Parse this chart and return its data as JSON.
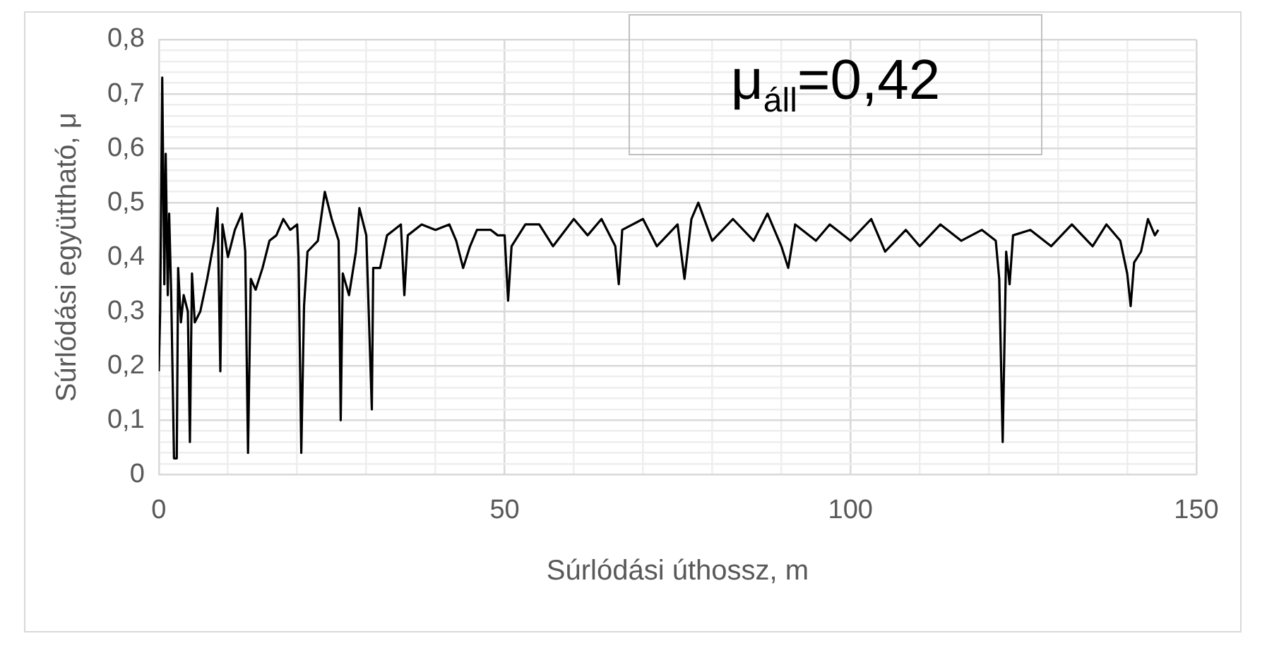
{
  "chart_data": {
    "type": "line",
    "xlabel": "Súrlódási úthossz, m",
    "ylabel": "Súrlódási együttható, μ",
    "annotations": [
      "μ$_{áll}$=0,42"
    ],
    "x": [
      0,
      0.2,
      0.5,
      0.8,
      1,
      1.3,
      1.5,
      1.8,
      2.2,
      2.6,
      2.8,
      3.2,
      3.6,
      4.2,
      4.5,
      4.8,
      5.2,
      6,
      7,
      8,
      8.5,
      8.9,
      9.2,
      10,
      11,
      12,
      12.5,
      12.9,
      13.3,
      14,
      15,
      16,
      17,
      18,
      19,
      20,
      20.2,
      20.6,
      21,
      21.5,
      23,
      24,
      25,
      26,
      26.3,
      26.6,
      27.5,
      28.5,
      29,
      30,
      30.8,
      31,
      32,
      33,
      34,
      35,
      35.5,
      36,
      38,
      40,
      42,
      43,
      44,
      45,
      46,
      48,
      49,
      50,
      50.5,
      51,
      53,
      55,
      57,
      60,
      62,
      64,
      66,
      66.5,
      67,
      70,
      72,
      75,
      76,
      77,
      78,
      80,
      83,
      86,
      88,
      90,
      91,
      92,
      95,
      97,
      100,
      103,
      105,
      108,
      110,
      113,
      116,
      119,
      121,
      121.5,
      122,
      122.5,
      123,
      123.5,
      126,
      129,
      132,
      135,
      137,
      139,
      140,
      140.5,
      141,
      142,
      143,
      144,
      144.5
    ],
    "series": [
      {
        "color": "#000000",
        "values": [
          0.19,
          0.3,
          0.73,
          0.35,
          0.59,
          0.33,
          0.48,
          0.33,
          0.03,
          0.03,
          0.38,
          0.28,
          0.33,
          0.3,
          0.06,
          0.37,
          0.28,
          0.3,
          0.36,
          0.43,
          0.49,
          0.19,
          0.46,
          0.4,
          0.45,
          0.48,
          0.41,
          0.04,
          0.36,
          0.34,
          0.38,
          0.43,
          0.44,
          0.47,
          0.45,
          0.46,
          0.4,
          0.04,
          0.31,
          0.41,
          0.43,
          0.52,
          0.47,
          0.43,
          0.1,
          0.37,
          0.33,
          0.41,
          0.49,
          0.44,
          0.12,
          0.38,
          0.38,
          0.44,
          0.45,
          0.46,
          0.33,
          0.44,
          0.46,
          0.45,
          0.46,
          0.43,
          0.38,
          0.42,
          0.45,
          0.45,
          0.44,
          0.44,
          0.32,
          0.42,
          0.46,
          0.46,
          0.42,
          0.47,
          0.44,
          0.47,
          0.42,
          0.35,
          0.45,
          0.47,
          0.42,
          0.46,
          0.36,
          0.47,
          0.5,
          0.43,
          0.47,
          0.43,
          0.48,
          0.42,
          0.38,
          0.46,
          0.43,
          0.46,
          0.43,
          0.47,
          0.41,
          0.45,
          0.42,
          0.46,
          0.43,
          0.45,
          0.43,
          0.36,
          0.06,
          0.41,
          0.35,
          0.44,
          0.45,
          0.42,
          0.46,
          0.42,
          0.46,
          0.43,
          0.37,
          0.31,
          0.39,
          0.41,
          0.47,
          0.44,
          0.45
        ]
      }
    ],
    "xlim": [
      0,
      150
    ],
    "xticks": [
      0,
      {
        "value": 10,
        "label": null
      },
      {
        "value": 20,
        "label": null
      },
      {
        "value": 30,
        "label": null
      },
      {
        "value": 40,
        "label": null
      },
      50,
      {
        "value": 60,
        "label": null
      },
      {
        "value": 70,
        "label": null
      },
      {
        "value": 80,
        "label": null
      },
      {
        "value": 90,
        "label": null
      },
      100,
      {
        "value": 110,
        "label": null
      },
      {
        "value": 120,
        "label": null
      },
      {
        "value": 130,
        "label": null
      },
      {
        "value": 140,
        "label": null
      },
      150
    ],
    "ylim": [
      0,
      0.8
    ],
    "yticks": [
      {
        "value": 0,
        "label": "0"
      },
      {
        "value": 0.02,
        "label": null
      },
      {
        "value": 0.04,
        "label": null
      },
      {
        "value": 0.06,
        "label": null
      },
      {
        "value": 0.08,
        "label": null
      },
      {
        "value": 0.1,
        "label": "0,1"
      },
      {
        "value": 0.12,
        "label": null
      },
      {
        "value": 0.14,
        "label": null
      },
      {
        "value": 0.16,
        "label": null
      },
      {
        "value": 0.18,
        "label": null
      },
      {
        "value": 0.2,
        "label": "0,2"
      },
      {
        "value": 0.22,
        "label": null
      },
      {
        "value": 0.24,
        "label": null
      },
      {
        "value": 0.26,
        "label": null
      },
      {
        "value": 0.28,
        "label": null
      },
      {
        "value": 0.3,
        "label": "0,3"
      },
      {
        "value": 0.32,
        "label": null
      },
      {
        "value": 0.34,
        "label": null
      },
      {
        "value": 0.36,
        "label": null
      },
      {
        "value": 0.38,
        "label": null
      },
      {
        "value": 0.4,
        "label": "0,4"
      },
      {
        "value": 0.42,
        "label": null
      },
      {
        "value": 0.44,
        "label": null
      },
      {
        "value": 0.46,
        "label": null
      },
      {
        "value": 0.48,
        "label": null
      },
      {
        "value": 0.5,
        "label": "0,5"
      },
      {
        "value": 0.52,
        "label": null
      },
      {
        "value": 0.54,
        "label": null
      },
      {
        "value": 0.56,
        "label": null
      },
      {
        "value": 0.58,
        "label": null
      },
      {
        "value": 0.6,
        "label": "0,6"
      },
      {
        "value": 0.62,
        "label": null
      },
      {
        "value": 0.64,
        "label": null
      },
      {
        "value": 0.66,
        "label": null
      },
      {
        "value": 0.68,
        "label": null
      },
      {
        "value": 0.7,
        "label": "0,7"
      },
      {
        "value": 0.72,
        "label": null
      },
      {
        "value": 0.74,
        "label": null
      },
      {
        "value": 0.76,
        "label": null
      },
      {
        "value": 0.78,
        "label": null
      },
      {
        "value": 0.8,
        "label": "0,8"
      }
    ],
    "grid": true,
    "legend": false,
    "marker": "none",
    "line_style": "solid"
  }
}
